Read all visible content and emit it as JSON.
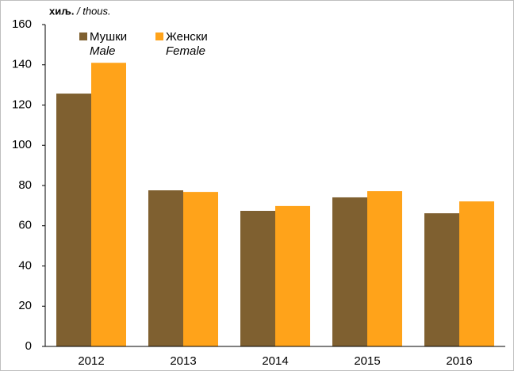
{
  "chart_data": {
    "type": "bar",
    "y_unit": {
      "local": "хиљ.",
      "english": "/ thous."
    },
    "categories": [
      "2012",
      "2013",
      "2014",
      "2015",
      "2016"
    ],
    "series": [
      {
        "name": "Мушки",
        "name_en": "Male",
        "color": "#7f6030",
        "values": [
          125.7,
          77.6,
          67.4,
          74.1,
          66.2
        ]
      },
      {
        "name": "Женски",
        "name_en": "Female",
        "color": "#ffa31a",
        "values": [
          141,
          76.8,
          69.8,
          77.2,
          72.1
        ]
      }
    ],
    "ylim": [
      0,
      160
    ],
    "yticks": [
      0,
      20,
      40,
      60,
      80,
      100,
      120,
      140,
      160
    ],
    "grid": false
  }
}
